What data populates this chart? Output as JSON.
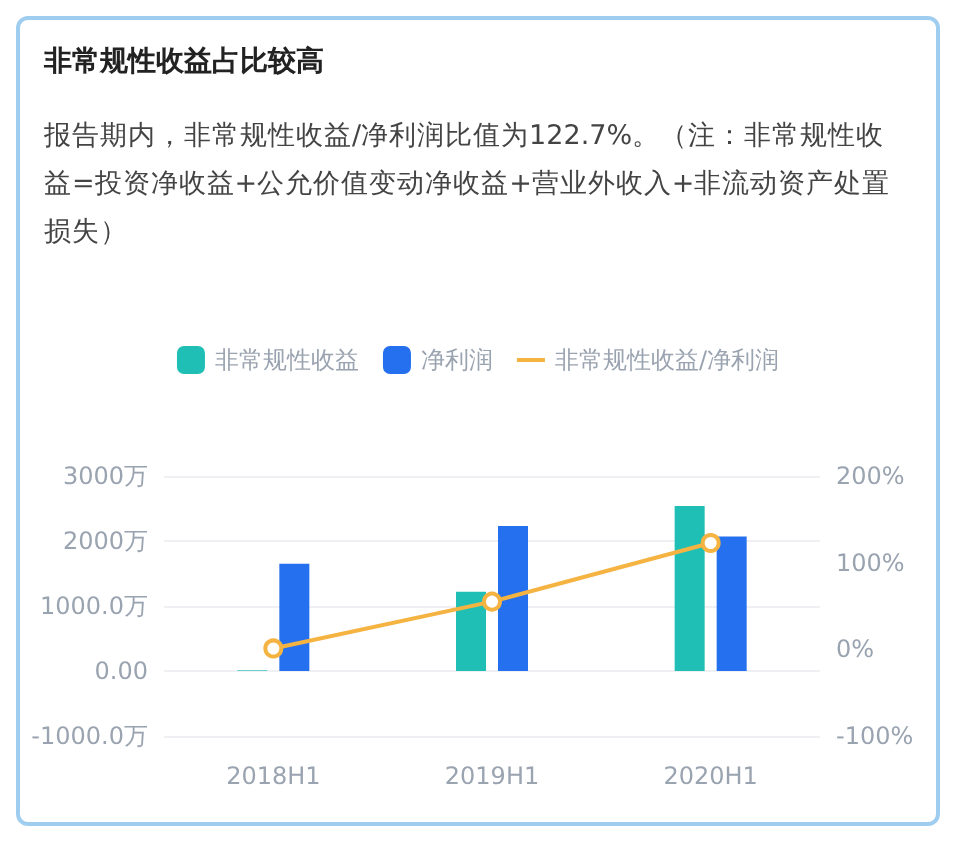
{
  "chart_data": {
    "type": "bar",
    "title": "非常规性收益占比较高",
    "subtitle": "报告期内，非常规性收益/净利润比值为122.7%。（注：非常规性收益=投资净收益+公允价值变动净收益+营业外收入+非流动资产处置损失）",
    "categories": [
      "2018H1",
      "2019H1",
      "2020H1"
    ],
    "series": [
      {
        "name": "非常规性收益",
        "color": "#20bfb5",
        "values": [
          10,
          1220,
          2540
        ]
      },
      {
        "name": "净利润",
        "color": "#2470ee",
        "values": [
          1650,
          2230,
          2070
        ]
      },
      {
        "name": "非常规性收益/净利润",
        "type": "line",
        "axis": "y2",
        "color": "#f5b342",
        "marker": "circle",
        "values": [
          1,
          55,
          122.7
        ]
      }
    ],
    "ylim": [
      -1000,
      3000
    ],
    "yticks": [
      {
        "value": -1000,
        "label": "-1000.0万"
      },
      {
        "value": 0,
        "label": "0.00"
      },
      {
        "value": 1000,
        "label": "1000.0万"
      },
      {
        "value": 2000,
        "label": "2000万"
      },
      {
        "value": 3000,
        "label": "3000万"
      }
    ],
    "y2lim": [
      -100,
      200
    ],
    "y2ticks": [
      {
        "value": -100,
        "label": "-100%"
      },
      {
        "value": 0,
        "label": "0%"
      },
      {
        "value": 100,
        "label": "100%"
      },
      {
        "value": 200,
        "label": "200%"
      }
    ],
    "grid": "y",
    "legend": "top"
  }
}
